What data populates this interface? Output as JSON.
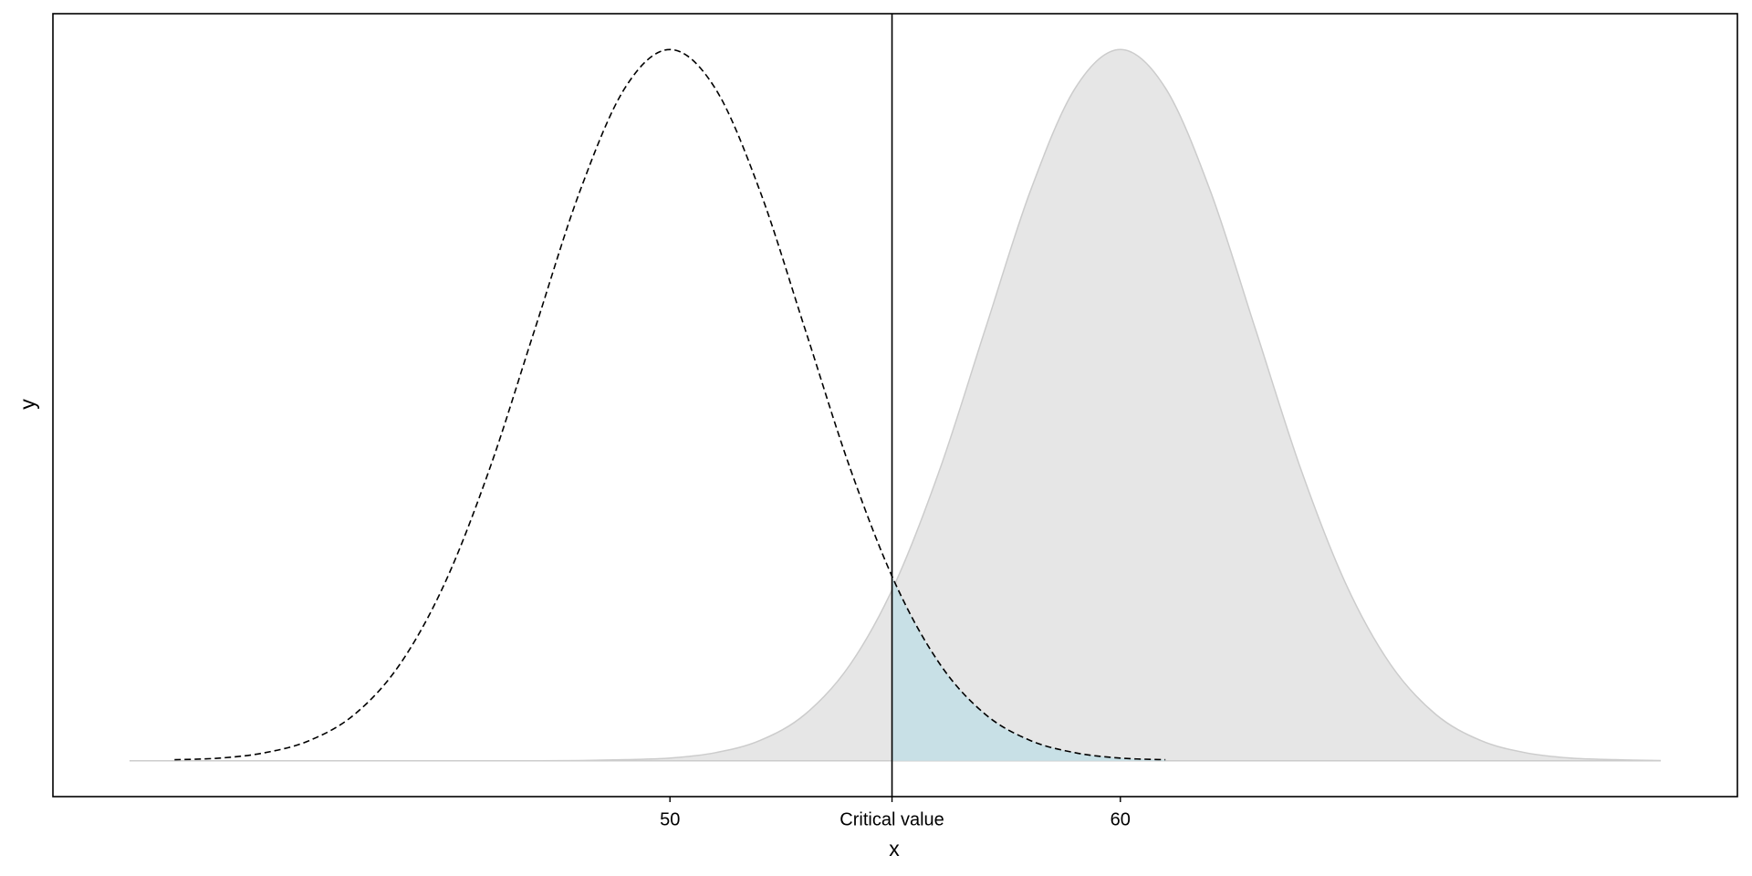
{
  "chart_data": {
    "type": "density",
    "x_label": "x",
    "y_label": "y",
    "x": [
      38,
      39,
      40,
      41,
      42,
      43,
      44,
      45,
      46,
      47,
      48,
      49,
      50,
      51,
      52,
      53,
      54,
      55,
      56,
      57,
      58,
      59,
      60,
      61,
      62,
      63,
      64,
      65,
      66,
      67,
      68,
      69,
      70,
      71,
      72
    ],
    "series": [
      {
        "style": "area",
        "color": "#e6e6e6",
        "line_color": "#cccccc",
        "values": [
          0,
          0,
          0,
          0,
          0,
          0,
          0,
          0,
          0,
          0,
          4e-05,
          0.0002,
          0.0005,
          0.0015,
          0.0038,
          0.0087,
          0.018,
          0.0332,
          0.0547,
          0.0807,
          0.1065,
          0.1258,
          0.133,
          0.1258,
          0.1065,
          0.0807,
          0.0547,
          0.0332,
          0.018,
          0.0087,
          0.0038,
          0.0015,
          0.0005,
          0.0002,
          4e-05
        ]
      },
      {
        "style": "dashed",
        "color": "#000000",
        "shade_color": "#c8e0e6",
        "values": [
          null,
          0.0002,
          0.0005,
          0.0015,
          0.0038,
          0.0087,
          0.018,
          0.0332,
          0.0547,
          0.0807,
          0.1065,
          0.1258,
          0.133,
          0.1258,
          0.1065,
          0.0807,
          0.0547,
          0.0332,
          0.018,
          0.0087,
          0.0038,
          0.0015,
          0.0005,
          0.0002,
          null,
          null,
          null,
          null,
          null,
          null,
          null,
          null,
          null,
          null,
          null
        ]
      }
    ],
    "vline": 54.93,
    "xlim": [
      36.3,
      73.7
    ],
    "ylim": [
      -0.0067,
      0.1397
    ],
    "xticks": [
      50,
      {
        "value": 54.93,
        "label": "Critical value"
      },
      60
    ]
  }
}
